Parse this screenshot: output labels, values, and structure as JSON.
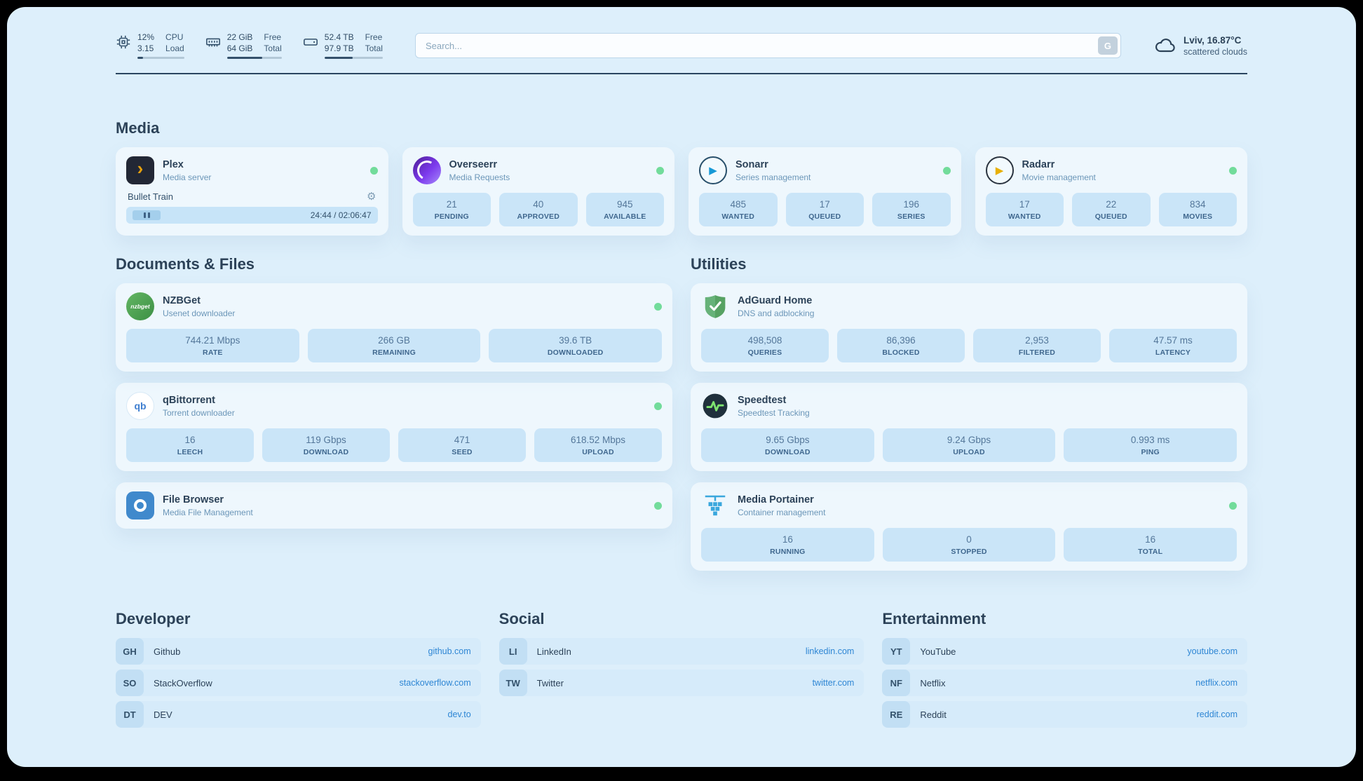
{
  "theme": {
    "page_bg": "#ddeffb",
    "card_bg": "rgba(255,255,255,0.5)",
    "stat_bg": "#cae5f8",
    "accent": "#2e86d4",
    "status_green": "#72dc9b",
    "text_primary": "#2c4258",
    "text_secondary": "#6b96b8"
  },
  "icons": {
    "plex_chevron": "›",
    "sonarr_play": "▶",
    "radarr_play": "▶",
    "gear": "⚙",
    "qbittorrent": "qb",
    "nzbget": "nzbget"
  },
  "topbar": {
    "cpu": {
      "value1": "12%",
      "value2": "3.15",
      "label1": "CPU",
      "label2": "Load",
      "progress": 12
    },
    "memory": {
      "value1": "22 GiB",
      "value2": "64 GiB",
      "label1": "Free",
      "label2": "Total",
      "progress": 64
    },
    "disk": {
      "value1": "52.4 TB",
      "value2": "97.9 TB",
      "label1": "Free",
      "label2": "Total",
      "progress": 48
    },
    "search": {
      "placeholder": "Search...",
      "provider": "G"
    },
    "weather": {
      "location": "Lviv, 16.87°C",
      "condition": "scattered clouds"
    }
  },
  "media": {
    "title": "Media",
    "plex": {
      "name": "Plex",
      "desc": "Media server",
      "now_playing": "Bullet Train",
      "time": "24:44 / 02:06:47"
    },
    "overseerr": {
      "name": "Overseerr",
      "desc": "Media Requests",
      "stats": [
        {
          "value": "21",
          "label": "PENDING"
        },
        {
          "value": "40",
          "label": "APPROVED"
        },
        {
          "value": "945",
          "label": "AVAILABLE"
        }
      ]
    },
    "sonarr": {
      "name": "Sonarr",
      "desc": "Series management",
      "stats": [
        {
          "value": "485",
          "label": "WANTED"
        },
        {
          "value": "17",
          "label": "QUEUED"
        },
        {
          "value": "196",
          "label": "SERIES"
        }
      ]
    },
    "radarr": {
      "name": "Radarr",
      "desc": "Movie management",
      "stats": [
        {
          "value": "17",
          "label": "WANTED"
        },
        {
          "value": "22",
          "label": "QUEUED"
        },
        {
          "value": "834",
          "label": "MOVIES"
        }
      ]
    }
  },
  "documents": {
    "title": "Documents & Files",
    "nzbget": {
      "name": "NZBGet",
      "desc": "Usenet downloader",
      "stats": [
        {
          "value": "744.21 Mbps",
          "label": "RATE"
        },
        {
          "value": "266 GB",
          "label": "REMAINING"
        },
        {
          "value": "39.6 TB",
          "label": "DOWNLOADED"
        }
      ]
    },
    "qbittorrent": {
      "name": "qBittorrent",
      "desc": "Torrent downloader",
      "stats": [
        {
          "value": "16",
          "label": "LEECH"
        },
        {
          "value": "119 Gbps",
          "label": "DOWNLOAD"
        },
        {
          "value": "471",
          "label": "SEED"
        },
        {
          "value": "618.52 Mbps",
          "label": "UPLOAD"
        }
      ]
    },
    "filebrowser": {
      "name": "File Browser",
      "desc": "Media File Management"
    }
  },
  "utilities": {
    "title": "Utilities",
    "adguard": {
      "name": "AdGuard Home",
      "desc": "DNS and adblocking",
      "stats": [
        {
          "value": "498,508",
          "label": "QUERIES"
        },
        {
          "value": "86,396",
          "label": "BLOCKED"
        },
        {
          "value": "2,953",
          "label": "FILTERED"
        },
        {
          "value": "47.57 ms",
          "label": "LATENCY"
        }
      ]
    },
    "speedtest": {
      "name": "Speedtest",
      "desc": "Speedtest Tracking",
      "stats": [
        {
          "value": "9.65 Gbps",
          "label": "DOWNLOAD"
        },
        {
          "value": "9.24 Gbps",
          "label": "UPLOAD"
        },
        {
          "value": "0.993 ms",
          "label": "PING"
        }
      ]
    },
    "portainer": {
      "name": "Media Portainer",
      "desc": "Container management",
      "stats": [
        {
          "value": "16",
          "label": "RUNNING"
        },
        {
          "value": "0",
          "label": "STOPPED"
        },
        {
          "value": "16",
          "label": "TOTAL"
        }
      ]
    }
  },
  "bookmarks": {
    "developer": {
      "title": "Developer",
      "links": [
        {
          "abbr": "GH",
          "name": "Github",
          "url": "github.com"
        },
        {
          "abbr": "SO",
          "name": "StackOverflow",
          "url": "stackoverflow.com"
        },
        {
          "abbr": "DT",
          "name": "DEV",
          "url": "dev.to"
        }
      ]
    },
    "social": {
      "title": "Social",
      "links": [
        {
          "abbr": "LI",
          "name": "LinkedIn",
          "url": "linkedin.com"
        },
        {
          "abbr": "TW",
          "name": "Twitter",
          "url": "twitter.com"
        }
      ]
    },
    "entertainment": {
      "title": "Entertainment",
      "links": [
        {
          "abbr": "YT",
          "name": "YouTube",
          "url": "youtube.com"
        },
        {
          "abbr": "NF",
          "name": "Netflix",
          "url": "netflix.com"
        },
        {
          "abbr": "RE",
          "name": "Reddit",
          "url": "reddit.com"
        }
      ]
    }
  }
}
